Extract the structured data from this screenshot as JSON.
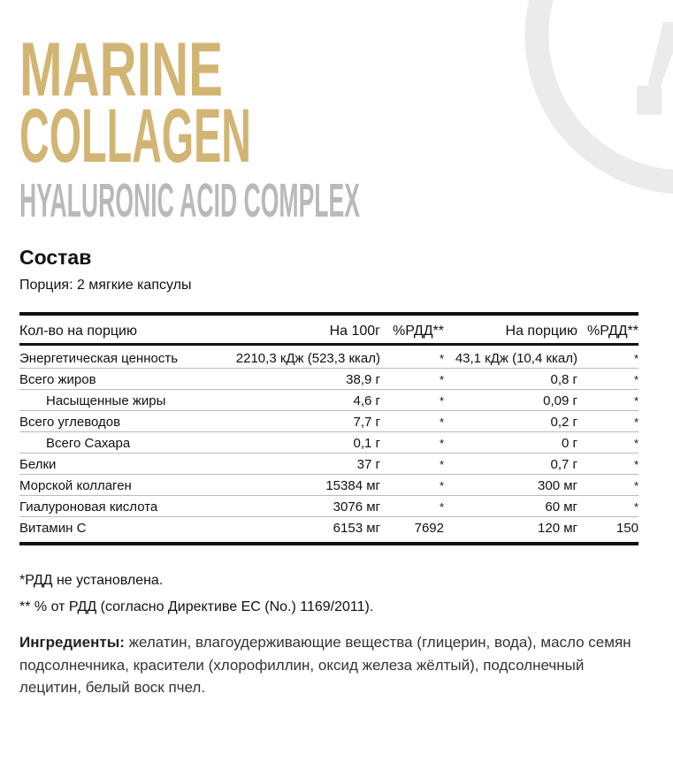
{
  "brand": {
    "logo_color": "#ebebeb",
    "gold": "#d2b574",
    "gray": "#b9b9b9"
  },
  "title": {
    "line1": "MARINE",
    "line2": "COLLAGEN",
    "subtitle": "HYALURONIC ACID COMPLEX"
  },
  "section": {
    "heading": "Состав",
    "serving": "Порция: 2 мягкие капсулы"
  },
  "table": {
    "headers": [
      "Кол-во на порцию",
      "На 100г",
      "%РДД**",
      "На порцию",
      "%РДД**"
    ],
    "rows": [
      {
        "name": "Энергетическая ценность",
        "per100": "2210,3 кДж (523,3 ккал)",
        "rdd100": "*",
        "perServing": "43,1 кДж (10,4 ккал)",
        "rddServing": "*"
      },
      {
        "name": "Всего жиров",
        "per100": "38,9 г",
        "rdd100": "*",
        "perServing": "0,8 г",
        "rddServing": "*"
      },
      {
        "name": "Насыщенные жиры",
        "per100": "4,6 г",
        "rdd100": "*",
        "perServing": "0,09 г",
        "rddServing": "*",
        "indent": true
      },
      {
        "name": "Всего углеводов",
        "per100": "7,7 г",
        "rdd100": "*",
        "perServing": "0,2 г",
        "rddServing": "*"
      },
      {
        "name": "Всего Сахара",
        "per100": "0,1 г",
        "rdd100": "*",
        "perServing": "0 г",
        "rddServing": "*",
        "indent": true
      },
      {
        "name": "Белки",
        "per100": "37 г",
        "rdd100": "*",
        "perServing": "0,7 г",
        "rddServing": "*"
      },
      {
        "name": "Морской коллаген",
        "per100": "15384 мг",
        "rdd100": "*",
        "perServing": "300 мг",
        "rddServing": "*"
      },
      {
        "name": "Гиалуроновая кислота",
        "per100": "3076 мг",
        "rdd100": "*",
        "perServing": "60 мг",
        "rddServing": "*"
      },
      {
        "name": "Витамин С",
        "per100": "6153 мг",
        "rdd100": "7692",
        "perServing": "120 мг",
        "rddServing": "150"
      }
    ]
  },
  "footnotes": [
    "*РДД не установлена.",
    "** % от РДД (согласно Директиве ЕС (No.) 1169/2011)."
  ],
  "ingredients": {
    "label": "Ингредиенты:",
    "text": " желатин, влагоудерживающие вещества (глицерин, вода), масло семян подсолнечника, красители (хлорофиллин, оксид железа жёлтый), подсолнечный лецитин, белый воск пчел."
  }
}
